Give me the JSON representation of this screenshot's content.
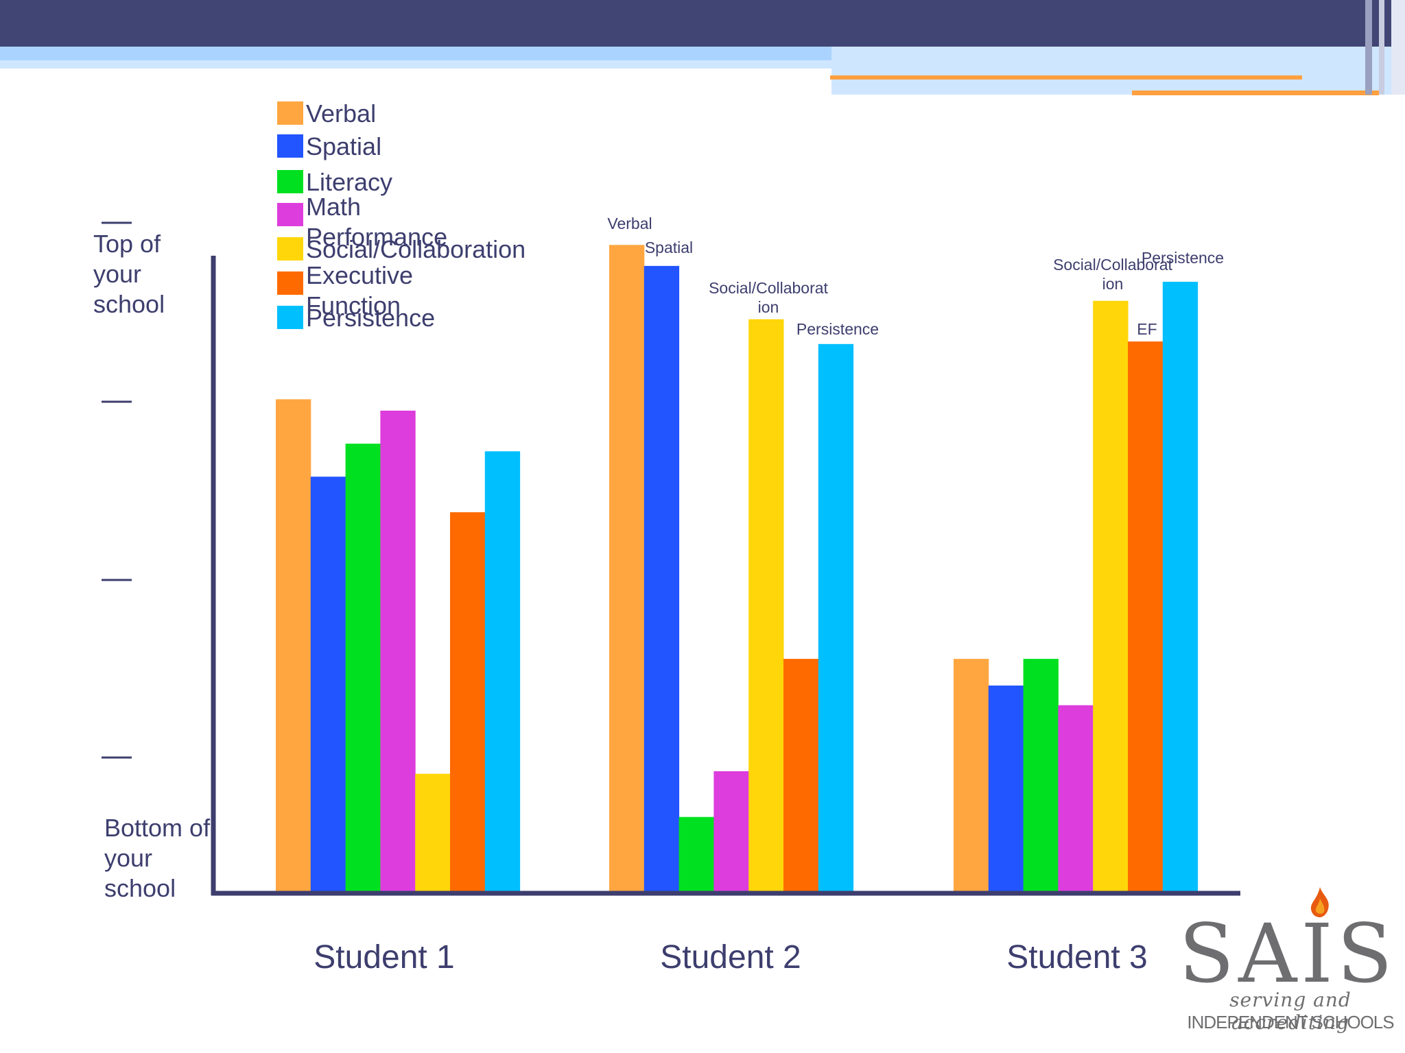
{
  "chart_data": {
    "type": "bar",
    "title": "",
    "categories": [
      "Student 1",
      "Student 2",
      "Student 3"
    ],
    "y_top_label": "Top of your school",
    "y_bottom_label": "Bottom of your school",
    "ylim": [
      0,
      100
    ],
    "grid": false,
    "legend_position": "top-left",
    "legend": [
      {
        "name": "Verbal",
        "color": "#ffa640"
      },
      {
        "name": "Spatial",
        "color": "#2255ff"
      },
      {
        "name": "Literacy",
        "color": "#00e020"
      },
      {
        "name": "Math Performance",
        "color": "#dd3ddd"
      },
      {
        "name": "Social/Collaboration",
        "color": "#ffd60a"
      },
      {
        "name": "Executive Function",
        "color": "#ff6a00"
      },
      {
        "name": "Persistence",
        "color": "#00bfff"
      }
    ],
    "series": [
      {
        "name": "Verbal",
        "values": [
          77.5,
          101.8,
          36.6
        ]
      },
      {
        "name": "Spatial",
        "values": [
          65.3,
          98.5,
          32.4
        ]
      },
      {
        "name": "Literacy",
        "values": [
          70.5,
          11.7,
          36.6
        ]
      },
      {
        "name": "Math Performance",
        "values": [
          75.7,
          18.9,
          29.3
        ]
      },
      {
        "name": "Social/Collaboration",
        "values": [
          18.5,
          90.1,
          93.0
        ]
      },
      {
        "name": "Executive Function",
        "values": [
          59.7,
          36.6,
          86.6
        ]
      },
      {
        "name": "Persistence",
        "values": [
          69.3,
          86.2,
          96.0
        ]
      }
    ],
    "bar_labels": [
      {
        "category": 1,
        "series": 0,
        "text": "Verbal"
      },
      {
        "category": 1,
        "series": 1,
        "text": "Spatial"
      },
      {
        "category": 1,
        "series": 4,
        "text": "Social/Collaborat ion"
      },
      {
        "category": 1,
        "series": 6,
        "text": "Persistence"
      },
      {
        "category": 2,
        "series": 4,
        "text": "Social/Collaborat ion"
      },
      {
        "category": 2,
        "series": 5,
        "text": "EF"
      },
      {
        "category": 2,
        "series": 6,
        "text": "Persistence"
      }
    ]
  },
  "logo": {
    "name": "SAIS",
    "tagline": "serving and accrediting",
    "subtagline": "INDEPENDENT SCHOOLS"
  },
  "colors": {
    "header_bar": "#414574",
    "header_stripe": "#aad4ff",
    "accent_line": "#ffa040",
    "axis": "#3d3e6e",
    "text": "#3d3e6e"
  }
}
